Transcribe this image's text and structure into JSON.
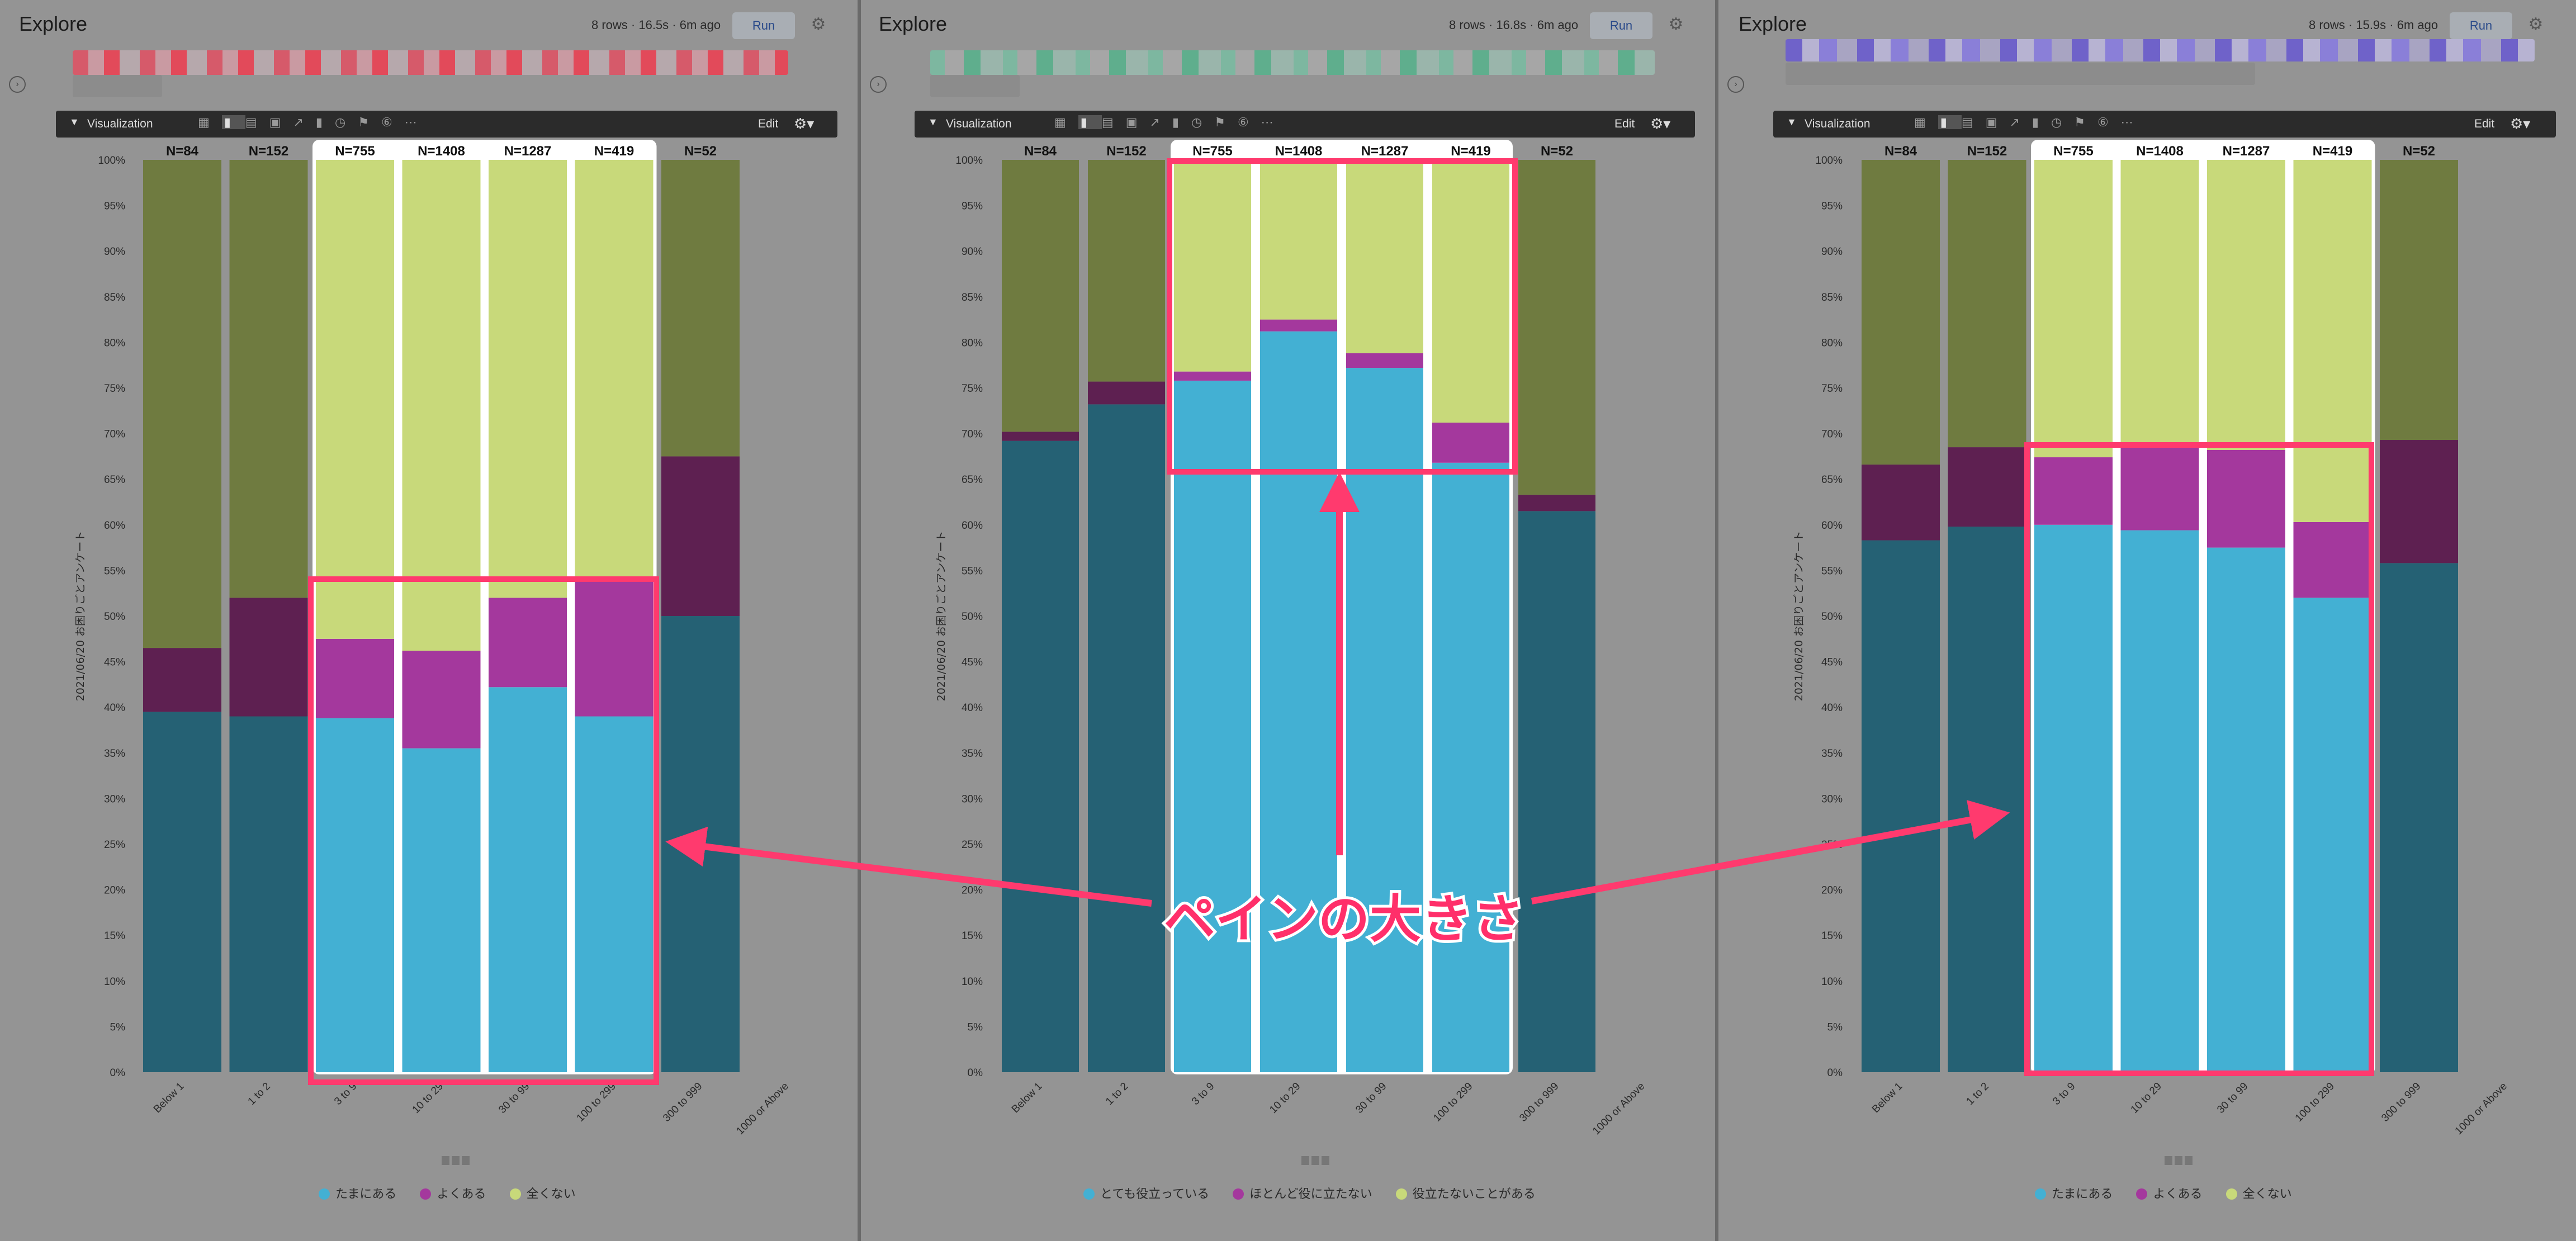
{
  "panels": [
    {
      "title": "Explore",
      "meta": "8 rows · 16.5s · 6m ago",
      "run": "Run",
      "viz_label": "Visualization",
      "edit": "Edit",
      "legend": [
        {
          "label": "たまにある",
          "color": "#43b0d3"
        },
        {
          "label": "よくある",
          "color": "#a4389d"
        },
        {
          "label": "全くない",
          "color": "#c8d97a"
        }
      ]
    },
    {
      "title": "Explore",
      "meta": "8 rows · 16.8s · 6m ago",
      "run": "Run",
      "viz_label": "Visualization",
      "edit": "Edit",
      "legend": [
        {
          "label": "とても役立っている",
          "color": "#43b0d3"
        },
        {
          "label": "ほとんど役に立たない",
          "color": "#a4389d"
        },
        {
          "label": "役立たないことがある",
          "color": "#c8d97a"
        }
      ]
    },
    {
      "title": "Explore",
      "meta": "8 rows · 15.9s · 6m ago",
      "run": "Run",
      "viz_label": "Visualization",
      "edit": "Edit",
      "legend": [
        {
          "label": "たまにある",
          "color": "#43b0d3"
        },
        {
          "label": "よくある",
          "color": "#a4389d"
        },
        {
          "label": "全くない",
          "color": "#c8d97a"
        }
      ]
    }
  ],
  "colors": {
    "bright_series": [
      "#43b0d3",
      "#a4389d",
      "#c8d97a"
    ],
    "dim_series": [
      "#256174",
      "#5e2051",
      "#6f7b40"
    ],
    "highlight_box": "#ff3a6e",
    "arrow": "#ff3a6e"
  },
  "annotation": "ペインの大きさ",
  "chart_data": [
    {
      "type": "bar",
      "stacked": true,
      "ylabel": "2021/06/20 お困りごとアンケート",
      "ylim": [
        0,
        100
      ],
      "yticks": [
        "0%",
        "5%",
        "10%",
        "15%",
        "20%",
        "25%",
        "30%",
        "35%",
        "40%",
        "45%",
        "50%",
        "55%",
        "60%",
        "65%",
        "70%",
        "75%",
        "80%",
        "85%",
        "90%",
        "95%",
        "100%"
      ],
      "categories": [
        "Below 1",
        "1 to 2",
        "3 to 9",
        "10 to 29",
        "30 to 99",
        "100 to 299",
        "300 to 999",
        "1000 or Above"
      ],
      "n_labels": [
        "N=84",
        "N=152",
        "N=755",
        "N=1408",
        "N=1287",
        "N=419",
        "N=52",
        ""
      ],
      "highlighted": [
        false,
        false,
        true,
        true,
        true,
        true,
        false,
        false
      ],
      "series": [
        {
          "name": "たまにある",
          "values": [
            39.5,
            39,
            38.8,
            35.5,
            42.2,
            39,
            50,
            0
          ]
        },
        {
          "name": "よくある",
          "values": [
            7,
            13,
            8.7,
            10.7,
            9.8,
            15,
            17.5,
            0
          ]
        },
        {
          "name": "全くない",
          "values": [
            53.5,
            48,
            52.5,
            53.8,
            48,
            46,
            32.5,
            0
          ]
        }
      ],
      "grid": true
    },
    {
      "type": "bar",
      "stacked": true,
      "ylabel": "2021/06/20 お困りごとアンケート",
      "ylim": [
        0,
        100
      ],
      "yticks": [
        "0%",
        "5%",
        "10%",
        "15%",
        "20%",
        "25%",
        "30%",
        "35%",
        "40%",
        "45%",
        "50%",
        "55%",
        "60%",
        "65%",
        "70%",
        "75%",
        "80%",
        "85%",
        "90%",
        "95%",
        "100%"
      ],
      "categories": [
        "Below 1",
        "1 to 2",
        "3 to 9",
        "10 to 29",
        "30 to 99",
        "100 to 299",
        "300 to 999",
        "1000 or Above"
      ],
      "n_labels": [
        "N=84",
        "N=152",
        "N=755",
        "N=1408",
        "N=1287",
        "N=419",
        "N=52",
        ""
      ],
      "highlighted": [
        false,
        false,
        true,
        true,
        true,
        true,
        false,
        false
      ],
      "series": [
        {
          "name": "とても役立っている",
          "values": [
            69.2,
            73.2,
            75.8,
            81.2,
            77.2,
            66.8,
            61.5,
            0
          ]
        },
        {
          "name": "ほとんど役に立たない",
          "values": [
            1,
            2.5,
            1,
            1.3,
            1.6,
            4.4,
            1.8,
            0
          ]
        },
        {
          "name": "役立たないことがある",
          "values": [
            29.8,
            24.3,
            23.2,
            17.5,
            21.2,
            28.8,
            36.7,
            0
          ]
        }
      ],
      "grid": true
    },
    {
      "type": "bar",
      "stacked": true,
      "ylabel": "2021/06/20 お困りごとアンケート",
      "ylim": [
        0,
        100
      ],
      "yticks": [
        "0%",
        "5%",
        "10%",
        "15%",
        "20%",
        "25%",
        "30%",
        "35%",
        "40%",
        "45%",
        "50%",
        "55%",
        "60%",
        "65%",
        "70%",
        "75%",
        "80%",
        "85%",
        "90%",
        "95%",
        "100%"
      ],
      "categories": [
        "Below 1",
        "1 to 2",
        "3 to 9",
        "10 to 29",
        "30 to 99",
        "100 to 299",
        "300 to 999",
        "1000 or Above"
      ],
      "n_labels": [
        "N=84",
        "N=152",
        "N=755",
        "N=1408",
        "N=1287",
        "N=419",
        "N=52",
        ""
      ],
      "highlighted": [
        false,
        false,
        true,
        true,
        true,
        true,
        false,
        false
      ],
      "series": [
        {
          "name": "たまにある",
          "values": [
            58.3,
            59.8,
            60,
            59.4,
            57.5,
            52,
            55.8,
            0
          ]
        },
        {
          "name": "よくある",
          "values": [
            8.3,
            8.7,
            7.4,
            9.1,
            10.7,
            8.3,
            13.5,
            0
          ]
        },
        {
          "name": "全くない",
          "values": [
            33.4,
            31.5,
            32.6,
            31.5,
            31.8,
            39.7,
            30.7,
            0
          ]
        }
      ],
      "grid": true
    }
  ]
}
